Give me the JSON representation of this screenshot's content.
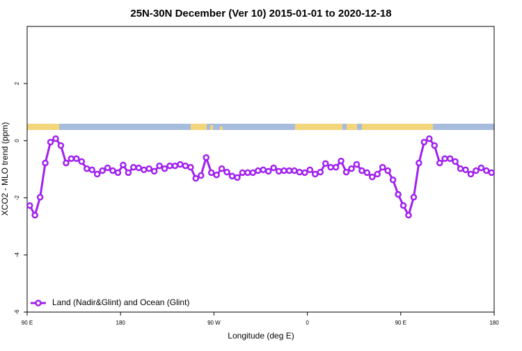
{
  "chart_data": {
    "type": "line",
    "title": "25N-30N December (Ver 10)   2015-01-01 to 2020-12-18",
    "x_label": "Longitude (deg E)",
    "y_label": "XCO2 - MLO trend (ppm)",
    "x": [
      92.5,
      97.5,
      102.5,
      107.5,
      112.5,
      117.5,
      122.5,
      127.5,
      132.5,
      137.5,
      142.5,
      147.5,
      152.5,
      157.5,
      162.5,
      167.5,
      172.5,
      177.5,
      182.5,
      187.5,
      192.5,
      197.5,
      202.5,
      207.5,
      212.5,
      217.5,
      222.5,
      227.5,
      232.5,
      237.5,
      242.5,
      247.5,
      252.5,
      257.5,
      262.5,
      267.5,
      272.5,
      277.5,
      282.5,
      287.5,
      292.5,
      297.5,
      302.5,
      307.5,
      312.5,
      317.5,
      322.5,
      327.5,
      332.5,
      337.5,
      342.5,
      347.5,
      352.5,
      357.5,
      362.5,
      367.5,
      372.5,
      377.5,
      382.5,
      387.5,
      392.5,
      397.5,
      402.5,
      407.5,
      412.5,
      417.5,
      422.5,
      427.5,
      432.5,
      437.5,
      442.5,
      447.5,
      452.5,
      457.5,
      462.5,
      467.5,
      472.5,
      477.5,
      482.5,
      487.5,
      492.5,
      497.5,
      502.5,
      507.5,
      512.5,
      517.5,
      522.5,
      527.5,
      532.5,
      537.5
    ],
    "series": [
      {
        "name": "Land (Nadir&Glint) and Ocean (Glint)",
        "color": "#a020f0",
        "values": [
          -2.27,
          -2.61,
          -1.98,
          -0.78,
          -0.05,
          0.07,
          -0.17,
          -0.78,
          -0.63,
          -0.63,
          -0.73,
          -0.98,
          -1.02,
          -1.17,
          -1.05,
          -0.95,
          -1.05,
          -1.12,
          -0.85,
          -1.12,
          -0.93,
          -0.95,
          -1.02,
          -0.98,
          -1.07,
          -0.88,
          -0.98,
          -0.88,
          -0.88,
          -0.83,
          -0.88,
          -0.93,
          -1.32,
          -1.22,
          -0.59,
          -1.12,
          -1.2,
          -0.98,
          -1.1,
          -1.24,
          -1.29,
          -1.12,
          -1.12,
          -1.12,
          -1.05,
          -1.02,
          -1.07,
          -0.95,
          -1.07,
          -1.05,
          -1.05,
          -1.05,
          -1.1,
          -1.12,
          -1.02,
          -1.17,
          -1.1,
          -0.8,
          -0.93,
          -0.93,
          -0.71,
          -1.1,
          -0.98,
          -0.83,
          -1.05,
          -1.12,
          -1.27,
          -1.17,
          -0.93,
          -1.05,
          -1.37,
          -1.88,
          -2.27,
          -2.61,
          -1.98,
          -0.78,
          -0.05,
          0.07,
          -0.17,
          -0.78,
          -0.63,
          -0.63,
          -0.73,
          -0.98,
          -1.02,
          -1.17,
          -1.05,
          -0.95,
          -1.05,
          -1.12
        ]
      }
    ],
    "xlim": [
      90,
      540
    ],
    "xticks": [
      {
        "value": 90,
        "label": "90 E"
      },
      180,
      {
        "value": 270,
        "label": "90 W"
      },
      {
        "value": 360,
        "label": "0"
      },
      {
        "value": 450,
        "label": "90 E"
      },
      {
        "value": 540,
        "label": "180"
      }
    ],
    "ylim": [
      -6,
      4
    ],
    "yticks": [
      -6,
      -4,
      -2,
      0,
      2
    ],
    "legend": "bottom-left"
  }
}
